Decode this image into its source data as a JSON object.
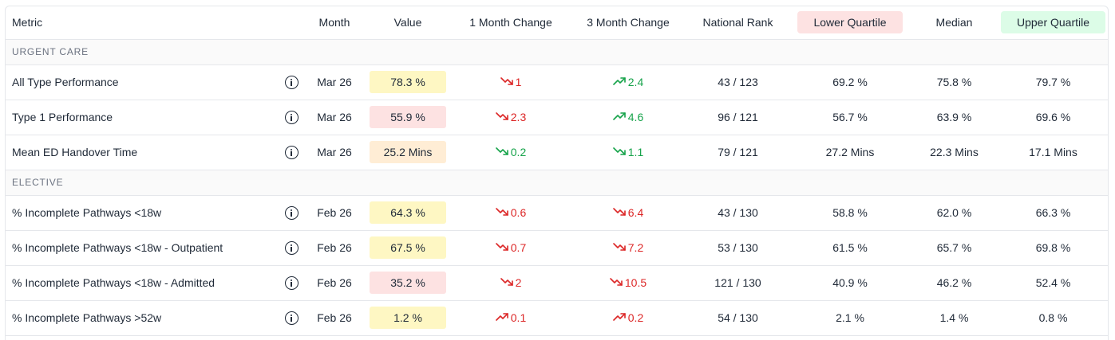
{
  "headers": {
    "metric": "Metric",
    "month": "Month",
    "value": "Value",
    "one_month": "1 Month Change",
    "three_month": "3 Month Change",
    "rank": "National Rank",
    "lower": "Lower Quartile",
    "median": "Median",
    "upper": "Upper Quartile"
  },
  "colors": {
    "red": "#dc2626",
    "green": "#16a34a",
    "yellow_pill": "#fef7c3",
    "red_pill": "#fde2e2",
    "orange_pill": "#ffedd5"
  },
  "sections": [
    {
      "title": "URGENT CARE",
      "rows": [
        {
          "metric": "All Type Performance",
          "month": "Mar 26",
          "value": "78.3 %",
          "value_color": "#fef7c3",
          "m1": {
            "text": "1",
            "dir": "down",
            "color": "#dc2626"
          },
          "m3": {
            "text": "2.4",
            "dir": "up",
            "color": "#16a34a"
          },
          "rank": "43 / 123",
          "lower": "69.2 %",
          "median": "75.8 %",
          "upper": "79.7 %"
        },
        {
          "metric": "Type 1 Performance",
          "month": "Mar 26",
          "value": "55.9 %",
          "value_color": "#fde2e2",
          "m1": {
            "text": "2.3",
            "dir": "down",
            "color": "#dc2626"
          },
          "m3": {
            "text": "4.6",
            "dir": "up",
            "color": "#16a34a"
          },
          "rank": "96 / 121",
          "lower": "56.7 %",
          "median": "63.9 %",
          "upper": "69.6 %"
        },
        {
          "metric": "Mean ED Handover Time",
          "month": "Mar 26",
          "value": "25.2 Mins",
          "value_color": "#ffedd5",
          "m1": {
            "text": "0.2",
            "dir": "down",
            "color": "#16a34a"
          },
          "m3": {
            "text": "1.1",
            "dir": "down",
            "color": "#16a34a"
          },
          "rank": "79 / 121",
          "lower": "27.2 Mins",
          "median": "22.3 Mins",
          "upper": "17.1 Mins"
        }
      ]
    },
    {
      "title": "ELECTIVE",
      "rows": [
        {
          "metric": "% Incomplete Pathways <18w",
          "month": "Feb 26",
          "value": "64.3 %",
          "value_color": "#fef7c3",
          "m1": {
            "text": "0.6",
            "dir": "down",
            "color": "#dc2626"
          },
          "m3": {
            "text": "6.4",
            "dir": "down",
            "color": "#dc2626"
          },
          "rank": "43 / 130",
          "lower": "58.8 %",
          "median": "62.0 %",
          "upper": "66.3 %"
        },
        {
          "metric": "% Incomplete Pathways <18w - Outpatient",
          "month": "Feb 26",
          "value": "67.5 %",
          "value_color": "#fef7c3",
          "m1": {
            "text": "0.7",
            "dir": "down",
            "color": "#dc2626"
          },
          "m3": {
            "text": "7.2",
            "dir": "down",
            "color": "#dc2626"
          },
          "rank": "53 / 130",
          "lower": "61.5 %",
          "median": "65.7 %",
          "upper": "69.8 %"
        },
        {
          "metric": "% Incomplete Pathways <18w - Admitted",
          "month": "Feb 26",
          "value": "35.2 %",
          "value_color": "#fde2e2",
          "m1": {
            "text": "2",
            "dir": "down",
            "color": "#dc2626"
          },
          "m3": {
            "text": "10.5",
            "dir": "down",
            "color": "#dc2626"
          },
          "rank": "121 / 130",
          "lower": "40.9 %",
          "median": "46.2 %",
          "upper": "52.4 %"
        },
        {
          "metric": "% Incomplete Pathways >52w",
          "month": "Feb 26",
          "value": "1.2 %",
          "value_color": "#fef7c3",
          "m1": {
            "text": "0.1",
            "dir": "up",
            "color": "#dc2626"
          },
          "m3": {
            "text": "0.2",
            "dir": "up",
            "color": "#dc2626"
          },
          "rank": "54 / 130",
          "lower": "2.1 %",
          "median": "1.4 %",
          "upper": "0.8 %"
        }
      ]
    }
  ]
}
